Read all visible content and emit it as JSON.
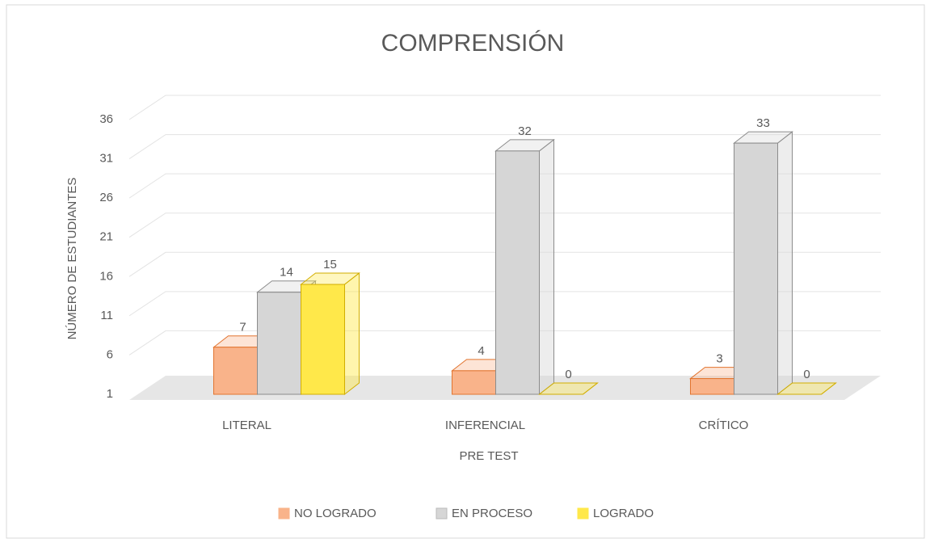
{
  "chart_data": {
    "type": "bar3d",
    "title": "COMPRENSIÓN",
    "x_label": "PRE TEST",
    "y_label": "NÚMERO DE ESTUDIANTES",
    "categories": [
      "LITERAL",
      "INFERENCIAL",
      "CRÍTICO"
    ],
    "series": [
      {
        "name": "NO LOGRADO",
        "color": "#f9b38a",
        "stroke": "#e2742f",
        "values": [
          7,
          4,
          3
        ]
      },
      {
        "name": "EN PROCESO",
        "color": "#d6d6d6",
        "stroke": "#8c8c8c",
        "values": [
          14,
          32,
          33
        ]
      },
      {
        "name": "LOGRADO",
        "color": "#ffe84a",
        "stroke": "#d2ae00",
        "values": [
          15,
          0,
          0
        ]
      }
    ],
    "ylim": [
      1,
      36
    ],
    "yticks": [
      1,
      6,
      11,
      16,
      21,
      26,
      31,
      36
    ],
    "grid": true,
    "legend": "bottom"
  }
}
